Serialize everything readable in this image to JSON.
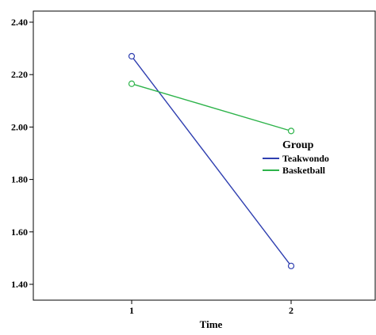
{
  "chart_data": {
    "type": "line",
    "x": [
      1,
      2
    ],
    "x_tick_labels": [
      "1",
      "2"
    ],
    "xlabel": "Time",
    "ylabel": "",
    "ylim": [
      1.35,
      2.42
    ],
    "y_ticks": [
      1.4,
      1.6,
      1.8,
      2.0,
      2.2,
      2.4
    ],
    "y_tick_labels": [
      "1.40",
      "1.60",
      "1.80",
      "2.00",
      "2.20",
      "2.40"
    ],
    "grid": false,
    "legend_title": "Group",
    "legend_position": "right",
    "series": [
      {
        "name": "Teakwondo",
        "values": [
          2.27,
          1.47
        ],
        "color": "#2f3fb0",
        "marker": "open-circle"
      },
      {
        "name": "Basketball",
        "values": [
          2.165,
          1.985
        ],
        "color": "#2db34a",
        "marker": "open-circle"
      }
    ]
  }
}
